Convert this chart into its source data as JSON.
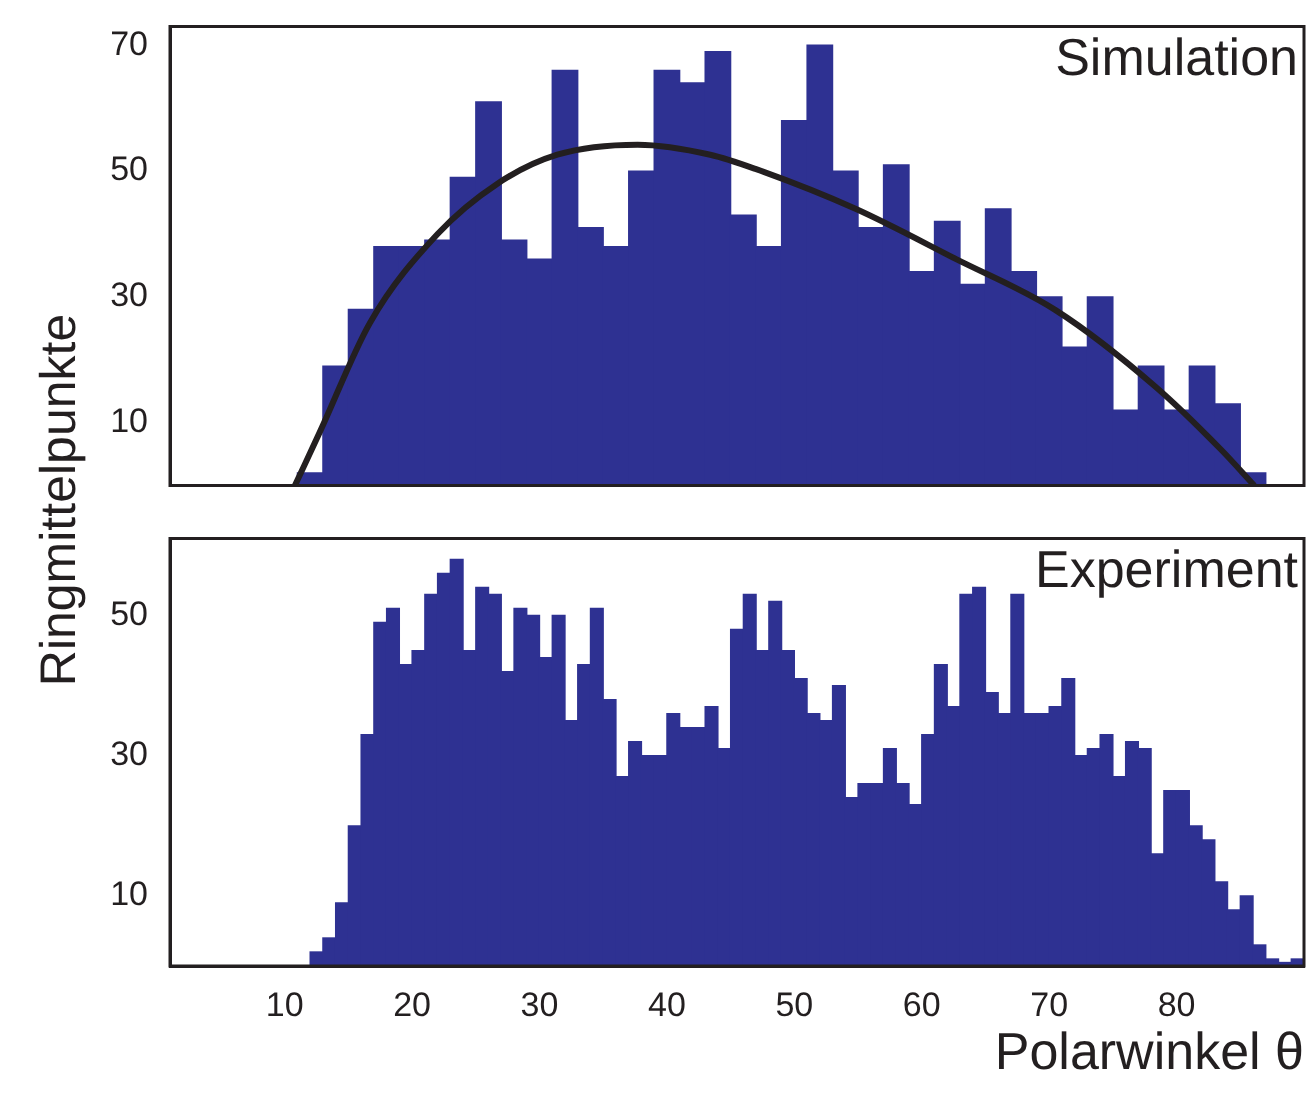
{
  "chart_data": [
    {
      "type": "histogram",
      "ylabel": "Ringmittelpunkte",
      "annotations": [
        "Simulation"
      ],
      "bins": [
        11,
        13,
        15,
        17,
        19,
        21,
        23,
        25,
        27,
        29,
        31,
        33,
        35,
        37,
        39,
        41,
        43,
        45,
        47,
        49,
        51,
        53,
        55,
        57,
        59,
        61,
        63,
        65,
        67,
        69,
        71,
        73,
        75,
        77,
        79,
        81,
        83,
        85,
        87
      ],
      "values": [
        2,
        19,
        28,
        38,
        38,
        39,
        49,
        61,
        39,
        36,
        66,
        41,
        38,
        50,
        66,
        64,
        69,
        43,
        38,
        58,
        70,
        50,
        41,
        51,
        34,
        42,
        32,
        44,
        34,
        30,
        22,
        30,
        12,
        19,
        12,
        19,
        13,
        2
      ],
      "color": "#2e3192",
      "series": [
        {
          "type": "line",
          "color": "#231f20",
          "x": [
            10.8,
            12.8,
            16.7,
            22,
            26.7,
            31.4,
            37.7,
            43.4,
            47,
            54.8,
            62.7,
            70.5,
            78.3,
            83.5,
            86.1
          ],
          "values": [
            0,
            8.7,
            25.9,
            40,
            48,
            52.6,
            54.2,
            52.6,
            50.3,
            44,
            36,
            27.9,
            15.8,
            5.7,
            0
          ]
        }
      ],
      "xlim": [
        1,
        90
      ],
      "ylim": [
        0,
        73
      ],
      "xticks": [
        10,
        20,
        30,
        40,
        50,
        60,
        70,
        80
      ],
      "yticks": [
        10,
        30,
        50,
        70
      ],
      "tick_labels": "y",
      "grid": false,
      "legend": false
    },
    {
      "type": "histogram",
      "xlabel": "Polarwinkel θ",
      "annotations": [
        "Experiment"
      ],
      "bins": [
        12,
        13,
        14,
        15,
        16,
        17,
        18,
        19,
        20,
        21,
        22,
        23,
        24,
        25,
        26,
        27,
        28,
        29,
        30,
        31,
        32,
        33,
        34,
        35,
        36,
        37,
        38,
        39,
        40,
        41,
        42,
        43,
        44,
        45,
        46,
        47,
        48,
        49,
        50,
        51,
        52,
        53,
        54,
        55,
        56,
        57,
        58,
        59,
        60,
        61,
        62,
        63,
        64,
        65,
        66,
        67,
        68,
        69,
        70,
        71,
        72,
        73,
        74,
        75,
        76,
        77,
        78,
        79,
        80,
        81,
        82,
        83,
        84,
        85,
        86,
        87,
        88,
        89,
        90
      ],
      "values": [
        2,
        4,
        9,
        20,
        33,
        49,
        51,
        43,
        45,
        53,
        56,
        58,
        45,
        54,
        53,
        42,
        51,
        50,
        44,
        50,
        35,
        43,
        51,
        38,
        27,
        32,
        30,
        30,
        36,
        34,
        34,
        37,
        31,
        48,
        53,
        45,
        52,
        45,
        41,
        36,
        35,
        40,
        24,
        26,
        26,
        31,
        26,
        23,
        33,
        43,
        37,
        53,
        54,
        39,
        36,
        53,
        36,
        36,
        37,
        41,
        30,
        31,
        33,
        27,
        32,
        31,
        16,
        25,
        25,
        20,
        18,
        12,
        8,
        10,
        3,
        1,
        0.5,
        1
      ],
      "color": "#2e3192",
      "xlim": [
        1,
        90
      ],
      "ylim": [
        0,
        61
      ],
      "xticks": [
        10,
        20,
        30,
        40,
        50,
        60,
        70,
        80
      ],
      "yticks": [
        10,
        30,
        50
      ],
      "grid": false,
      "legend": false
    }
  ]
}
